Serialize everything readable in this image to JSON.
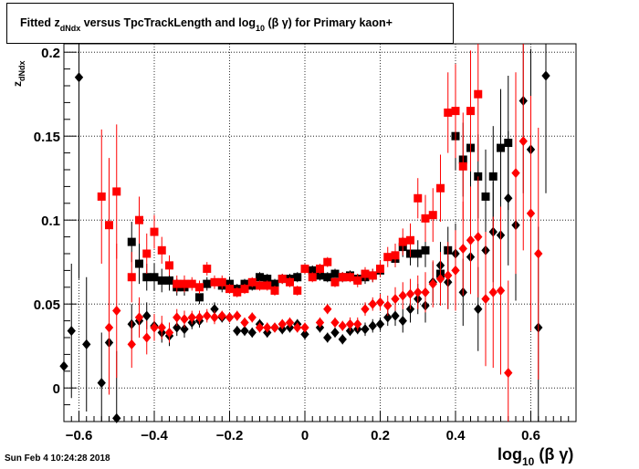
{
  "title": {
    "prefix": "Fitted  z",
    "subscript": "dNdx",
    "middle": " versus TpcTrackLength and log",
    "log_sub": "10",
    "suffix": " (β γ) for Primary kaon+"
  },
  "timestamp": "Sun Feb  4 10:24:28 2018",
  "xlabel": {
    "main": "log",
    "sub": "10",
    "tail": " (β γ)"
  },
  "ylabel": {
    "main": "z",
    "sub": "dNdx"
  },
  "colors": {
    "series_black": "#000000",
    "series_red": "#ff0000"
  },
  "chart_data": {
    "type": "scatter",
    "xlim": [
      -0.64,
      0.72
    ],
    "ylim": [
      -0.02,
      0.205
    ],
    "grid": true,
    "x_ticks": [
      "-0.6",
      "-0.4",
      "-0.2",
      "0",
      "0.2",
      "0.4",
      "0.6"
    ],
    "x_tick_values": [
      -0.6,
      -0.4,
      -0.2,
      0,
      0.2,
      0.4,
      0.6
    ],
    "y_ticks": [
      "0",
      "0.05",
      "0.1",
      "0.15",
      "0.2"
    ],
    "y_tick_values": [
      0,
      0.05,
      0.1,
      0.15,
      0.2
    ],
    "series": [
      {
        "color": "#000000",
        "marker": "square",
        "points": [
          [
            -0.46,
            0.087,
            0.012
          ],
          [
            -0.44,
            0.074,
            0.012
          ],
          [
            -0.42,
            0.066,
            0.008
          ],
          [
            -0.4,
            0.066,
            0.008
          ],
          [
            -0.38,
            0.064,
            0.007
          ],
          [
            -0.36,
            0.064,
            0.006
          ],
          [
            -0.34,
            0.06,
            0.005
          ],
          [
            -0.32,
            0.06,
            0.005
          ],
          [
            -0.28,
            0.054,
            0.004
          ],
          [
            -0.26,
            0.062,
            0.004
          ],
          [
            -0.22,
            0.061,
            0.004
          ],
          [
            -0.2,
            0.062,
            0.004
          ],
          [
            -0.18,
            0.059,
            0.003
          ],
          [
            -0.16,
            0.062,
            0.003
          ],
          [
            -0.14,
            0.061,
            0.003
          ],
          [
            -0.12,
            0.066,
            0.003
          ],
          [
            -0.1,
            0.065,
            0.003
          ],
          [
            -0.08,
            0.062,
            0.003
          ],
          [
            -0.06,
            0.065,
            0.003
          ],
          [
            -0.04,
            0.065,
            0.003
          ],
          [
            -0.02,
            0.066,
            0.003
          ],
          [
            0.02,
            0.07,
            0.003
          ],
          [
            0.04,
            0.067,
            0.003
          ],
          [
            0.06,
            0.066,
            0.003
          ],
          [
            0.08,
            0.068,
            0.003
          ],
          [
            0.1,
            0.066,
            0.003
          ],
          [
            0.12,
            0.067,
            0.003
          ],
          [
            0.14,
            0.065,
            0.003
          ],
          [
            0.16,
            0.066,
            0.004
          ],
          [
            0.18,
            0.067,
            0.004
          ],
          [
            0.2,
            0.07,
            0.004
          ],
          [
            0.24,
            0.077,
            0.005
          ],
          [
            0.26,
            0.084,
            0.006
          ],
          [
            0.28,
            0.08,
            0.007
          ],
          [
            0.3,
            0.08,
            0.008
          ],
          [
            0.32,
            0.082,
            0.01
          ],
          [
            0.36,
            0.068,
            0.012
          ],
          [
            0.38,
            0.082,
            0.014
          ],
          [
            0.4,
            0.15,
            0.02
          ],
          [
            0.42,
            0.136,
            0.022
          ],
          [
            0.44,
            0.143,
            0.025
          ],
          [
            0.46,
            0.126,
            0.025
          ],
          [
            0.48,
            0.114,
            0.028
          ],
          [
            0.5,
            0.126,
            0.03
          ],
          [
            0.52,
            0.143,
            0.035
          ],
          [
            0.54,
            0.146,
            0.04
          ]
        ]
      },
      {
        "color": "#000000",
        "marker": "diamond",
        "points": [
          [
            -0.64,
            0.013,
            0.03
          ],
          [
            -0.62,
            0.034,
            0.04
          ],
          [
            -0.6,
            0.185,
            0.12
          ],
          [
            -0.58,
            0.026,
            0.04
          ],
          [
            -0.54,
            0.003,
            0.03
          ],
          [
            -0.52,
            0.027,
            0.03
          ],
          [
            -0.5,
            -0.018,
            0.04
          ],
          [
            -0.46,
            0.038,
            0.012
          ],
          [
            -0.44,
            0.04,
            0.01
          ],
          [
            -0.42,
            0.043,
            0.008
          ],
          [
            -0.4,
            0.037,
            0.007
          ],
          [
            -0.38,
            0.033,
            0.006
          ],
          [
            -0.36,
            0.031,
            0.006
          ],
          [
            -0.34,
            0.036,
            0.005
          ],
          [
            -0.32,
            0.035,
            0.005
          ],
          [
            -0.3,
            0.039,
            0.004
          ],
          [
            -0.28,
            0.04,
            0.004
          ],
          [
            -0.24,
            0.047,
            0.004
          ],
          [
            -0.22,
            0.042,
            0.003
          ],
          [
            -0.2,
            0.042,
            0.003
          ],
          [
            -0.18,
            0.034,
            0.003
          ],
          [
            -0.16,
            0.034,
            0.003
          ],
          [
            -0.14,
            0.033,
            0.003
          ],
          [
            -0.12,
            0.038,
            0.003
          ],
          [
            -0.1,
            0.033,
            0.003
          ],
          [
            -0.08,
            0.036,
            0.003
          ],
          [
            -0.06,
            0.035,
            0.003
          ],
          [
            -0.04,
            0.036,
            0.003
          ],
          [
            -0.02,
            0.038,
            0.003
          ],
          [
            0.0,
            0.032,
            0.003
          ],
          [
            0.04,
            0.036,
            0.003
          ],
          [
            0.06,
            0.03,
            0.003
          ],
          [
            0.08,
            0.033,
            0.003
          ],
          [
            0.1,
            0.029,
            0.003
          ],
          [
            0.12,
            0.034,
            0.003
          ],
          [
            0.14,
            0.035,
            0.003
          ],
          [
            0.16,
            0.035,
            0.004
          ],
          [
            0.18,
            0.037,
            0.004
          ],
          [
            0.2,
            0.038,
            0.004
          ],
          [
            0.22,
            0.042,
            0.005
          ],
          [
            0.24,
            0.043,
            0.006
          ],
          [
            0.26,
            0.04,
            0.007
          ],
          [
            0.28,
            0.047,
            0.008
          ],
          [
            0.3,
            0.053,
            0.009
          ],
          [
            0.32,
            0.049,
            0.01
          ],
          [
            0.34,
            0.063,
            0.012
          ],
          [
            0.36,
            0.073,
            0.014
          ],
          [
            0.38,
            0.063,
            0.016
          ],
          [
            0.4,
            0.08,
            0.018
          ],
          [
            0.42,
            0.057,
            0.02
          ],
          [
            0.44,
            0.078,
            0.022
          ],
          [
            0.46,
            0.047,
            0.025
          ],
          [
            0.48,
            0.082,
            0.028
          ],
          [
            0.5,
            0.093,
            0.03
          ],
          [
            0.52,
            0.091,
            0.035
          ],
          [
            0.54,
            0.113,
            0.04
          ],
          [
            0.56,
            0.097,
            0.045
          ],
          [
            0.58,
            0.171,
            0.055
          ],
          [
            0.6,
            0.142,
            0.06
          ],
          [
            0.62,
            0.036,
            0.06
          ],
          [
            0.64,
            0.186,
            0.07
          ]
        ]
      },
      {
        "color": "#ff0000",
        "marker": "square",
        "points": [
          [
            -0.54,
            0.114,
            0.04
          ],
          [
            -0.52,
            0.097,
            0.04
          ],
          [
            -0.5,
            0.117,
            0.04
          ],
          [
            -0.46,
            0.066,
            0.015
          ],
          [
            -0.44,
            0.1,
            0.014
          ],
          [
            -0.42,
            0.08,
            0.012
          ],
          [
            -0.4,
            0.093,
            0.01
          ],
          [
            -0.38,
            0.082,
            0.008
          ],
          [
            -0.36,
            0.073,
            0.006
          ],
          [
            -0.34,
            0.062,
            0.005
          ],
          [
            -0.32,
            0.062,
            0.005
          ],
          [
            -0.3,
            0.062,
            0.004
          ],
          [
            -0.28,
            0.06,
            0.004
          ],
          [
            -0.26,
            0.071,
            0.004
          ],
          [
            -0.24,
            0.063,
            0.004
          ],
          [
            -0.22,
            0.063,
            0.004
          ],
          [
            -0.2,
            0.059,
            0.003
          ],
          [
            -0.18,
            0.057,
            0.003
          ],
          [
            -0.16,
            0.059,
            0.003
          ],
          [
            -0.14,
            0.063,
            0.003
          ],
          [
            -0.12,
            0.061,
            0.003
          ],
          [
            -0.1,
            0.061,
            0.003
          ],
          [
            -0.08,
            0.058,
            0.003
          ],
          [
            -0.06,
            0.065,
            0.003
          ],
          [
            -0.04,
            0.063,
            0.003
          ],
          [
            -0.02,
            0.058,
            0.003
          ],
          [
            0.0,
            0.071,
            0.003
          ],
          [
            0.02,
            0.066,
            0.003
          ],
          [
            0.04,
            0.071,
            0.003
          ],
          [
            0.06,
            0.075,
            0.003
          ],
          [
            0.08,
            0.063,
            0.003
          ],
          [
            0.1,
            0.066,
            0.003
          ],
          [
            0.12,
            0.066,
            0.003
          ],
          [
            0.14,
            0.064,
            0.004
          ],
          [
            0.16,
            0.068,
            0.004
          ],
          [
            0.18,
            0.067,
            0.004
          ],
          [
            0.2,
            0.071,
            0.005
          ],
          [
            0.22,
            0.078,
            0.006
          ],
          [
            0.24,
            0.079,
            0.007
          ],
          [
            0.26,
            0.087,
            0.008
          ],
          [
            0.28,
            0.088,
            0.01
          ],
          [
            0.3,
            0.113,
            0.012
          ],
          [
            0.32,
            0.101,
            0.014
          ],
          [
            0.34,
            0.103,
            0.016
          ],
          [
            0.36,
            0.119,
            0.02
          ],
          [
            0.38,
            0.164,
            0.024
          ],
          [
            0.4,
            0.165,
            0.028
          ],
          [
            0.42,
            0.132,
            0.032
          ],
          [
            0.44,
            0.165,
            0.036
          ],
          [
            0.46,
            0.175,
            0.04
          ]
        ]
      },
      {
        "color": "#ff0000",
        "marker": "diamond",
        "points": [
          [
            -0.52,
            0.036,
            0.04
          ],
          [
            -0.5,
            0.046,
            0.04
          ],
          [
            -0.46,
            0.026,
            0.014
          ],
          [
            -0.44,
            0.042,
            0.012
          ],
          [
            -0.42,
            0.03,
            0.01
          ],
          [
            -0.4,
            0.036,
            0.008
          ],
          [
            -0.38,
            0.036,
            0.007
          ],
          [
            -0.36,
            0.033,
            0.006
          ],
          [
            -0.34,
            0.042,
            0.005
          ],
          [
            -0.32,
            0.041,
            0.005
          ],
          [
            -0.3,
            0.042,
            0.004
          ],
          [
            -0.28,
            0.042,
            0.004
          ],
          [
            -0.26,
            0.043,
            0.004
          ],
          [
            -0.24,
            0.042,
            0.004
          ],
          [
            -0.22,
            0.043,
            0.003
          ],
          [
            -0.2,
            0.042,
            0.003
          ],
          [
            -0.18,
            0.043,
            0.003
          ],
          [
            -0.16,
            0.039,
            0.003
          ],
          [
            -0.14,
            0.042,
            0.003
          ],
          [
            -0.12,
            0.036,
            0.003
          ],
          [
            -0.1,
            0.036,
            0.003
          ],
          [
            -0.08,
            0.036,
            0.003
          ],
          [
            -0.06,
            0.038,
            0.003
          ],
          [
            -0.04,
            0.039,
            0.003
          ],
          [
            -0.02,
            0.036,
            0.003
          ],
          [
            0.0,
            0.036,
            0.003
          ],
          [
            0.04,
            0.039,
            0.003
          ],
          [
            0.06,
            0.047,
            0.003
          ],
          [
            0.08,
            0.039,
            0.003
          ],
          [
            0.1,
            0.037,
            0.003
          ],
          [
            0.12,
            0.038,
            0.004
          ],
          [
            0.14,
            0.038,
            0.004
          ],
          [
            0.16,
            0.047,
            0.004
          ],
          [
            0.18,
            0.05,
            0.004
          ],
          [
            0.2,
            0.051,
            0.005
          ],
          [
            0.22,
            0.049,
            0.006
          ],
          [
            0.24,
            0.053,
            0.007
          ],
          [
            0.26,
            0.055,
            0.008
          ],
          [
            0.28,
            0.056,
            0.009
          ],
          [
            0.3,
            0.057,
            0.01
          ],
          [
            0.32,
            0.057,
            0.012
          ],
          [
            0.34,
            0.062,
            0.014
          ],
          [
            0.36,
            0.065,
            0.016
          ],
          [
            0.38,
            0.067,
            0.02
          ],
          [
            0.4,
            0.07,
            0.024
          ],
          [
            0.42,
            0.083,
            0.028
          ],
          [
            0.44,
            0.088,
            0.032
          ],
          [
            0.46,
            0.09,
            0.036
          ],
          [
            0.48,
            0.053,
            0.04
          ],
          [
            0.5,
            0.057,
            0.045
          ],
          [
            0.52,
            0.058,
            0.05
          ],
          [
            0.54,
            0.009,
            0.055
          ],
          [
            0.56,
            0.128,
            0.06
          ],
          [
            0.58,
            0.147,
            0.065
          ],
          [
            0.6,
            0.104,
            0.07
          ],
          [
            0.62,
            0.08,
            0.075
          ]
        ]
      }
    ]
  }
}
